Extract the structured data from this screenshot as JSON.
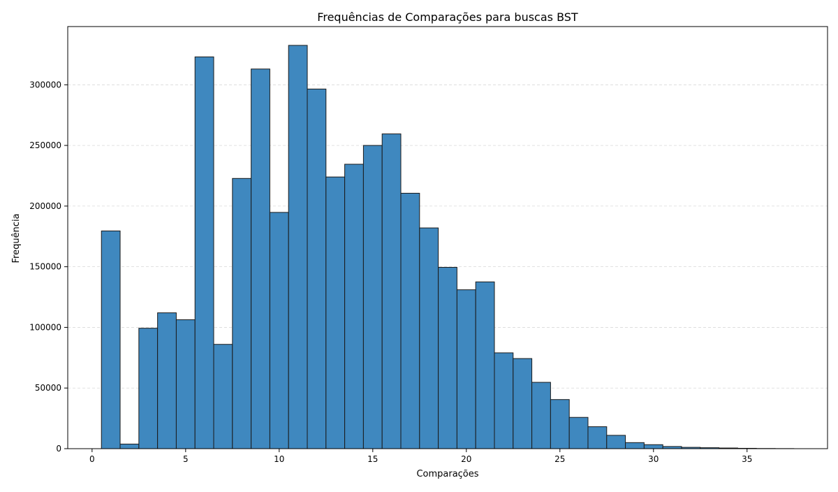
{
  "chart_data": {
    "type": "bar",
    "title": "Frequências de Comparações para buscas BST",
    "xlabel": "Comparações",
    "ylabel": "Frequência",
    "categories": [
      1,
      2,
      3,
      4,
      5,
      6,
      7,
      8,
      9,
      10,
      11,
      12,
      13,
      14,
      15,
      16,
      17,
      18,
      19,
      20,
      21,
      22,
      23,
      24,
      25,
      26,
      27,
      28,
      29,
      30,
      31,
      32,
      33,
      34,
      35,
      36,
      37
    ],
    "values": [
      179500,
      3800,
      99300,
      112000,
      106300,
      323000,
      86000,
      222800,
      313000,
      194800,
      332500,
      296500,
      224000,
      234500,
      250000,
      259500,
      210600,
      182000,
      149500,
      131000,
      137500,
      79000,
      74300,
      54700,
      40500,
      25800,
      18100,
      11000,
      5000,
      3300,
      1800,
      1100,
      800,
      550,
      300,
      150,
      80
    ],
    "xlim": [
      -1.3,
      39.3
    ],
    "ylim": [
      0,
      348000
    ],
    "xticks": [
      0,
      5,
      10,
      15,
      20,
      25,
      30,
      35
    ],
    "yticks": [
      0,
      50000,
      100000,
      150000,
      200000,
      250000,
      300000
    ],
    "bar_color": "#3f88bf",
    "edge_color": "#1a1a1a",
    "grid": "horizontal dashed",
    "legend": "none"
  }
}
